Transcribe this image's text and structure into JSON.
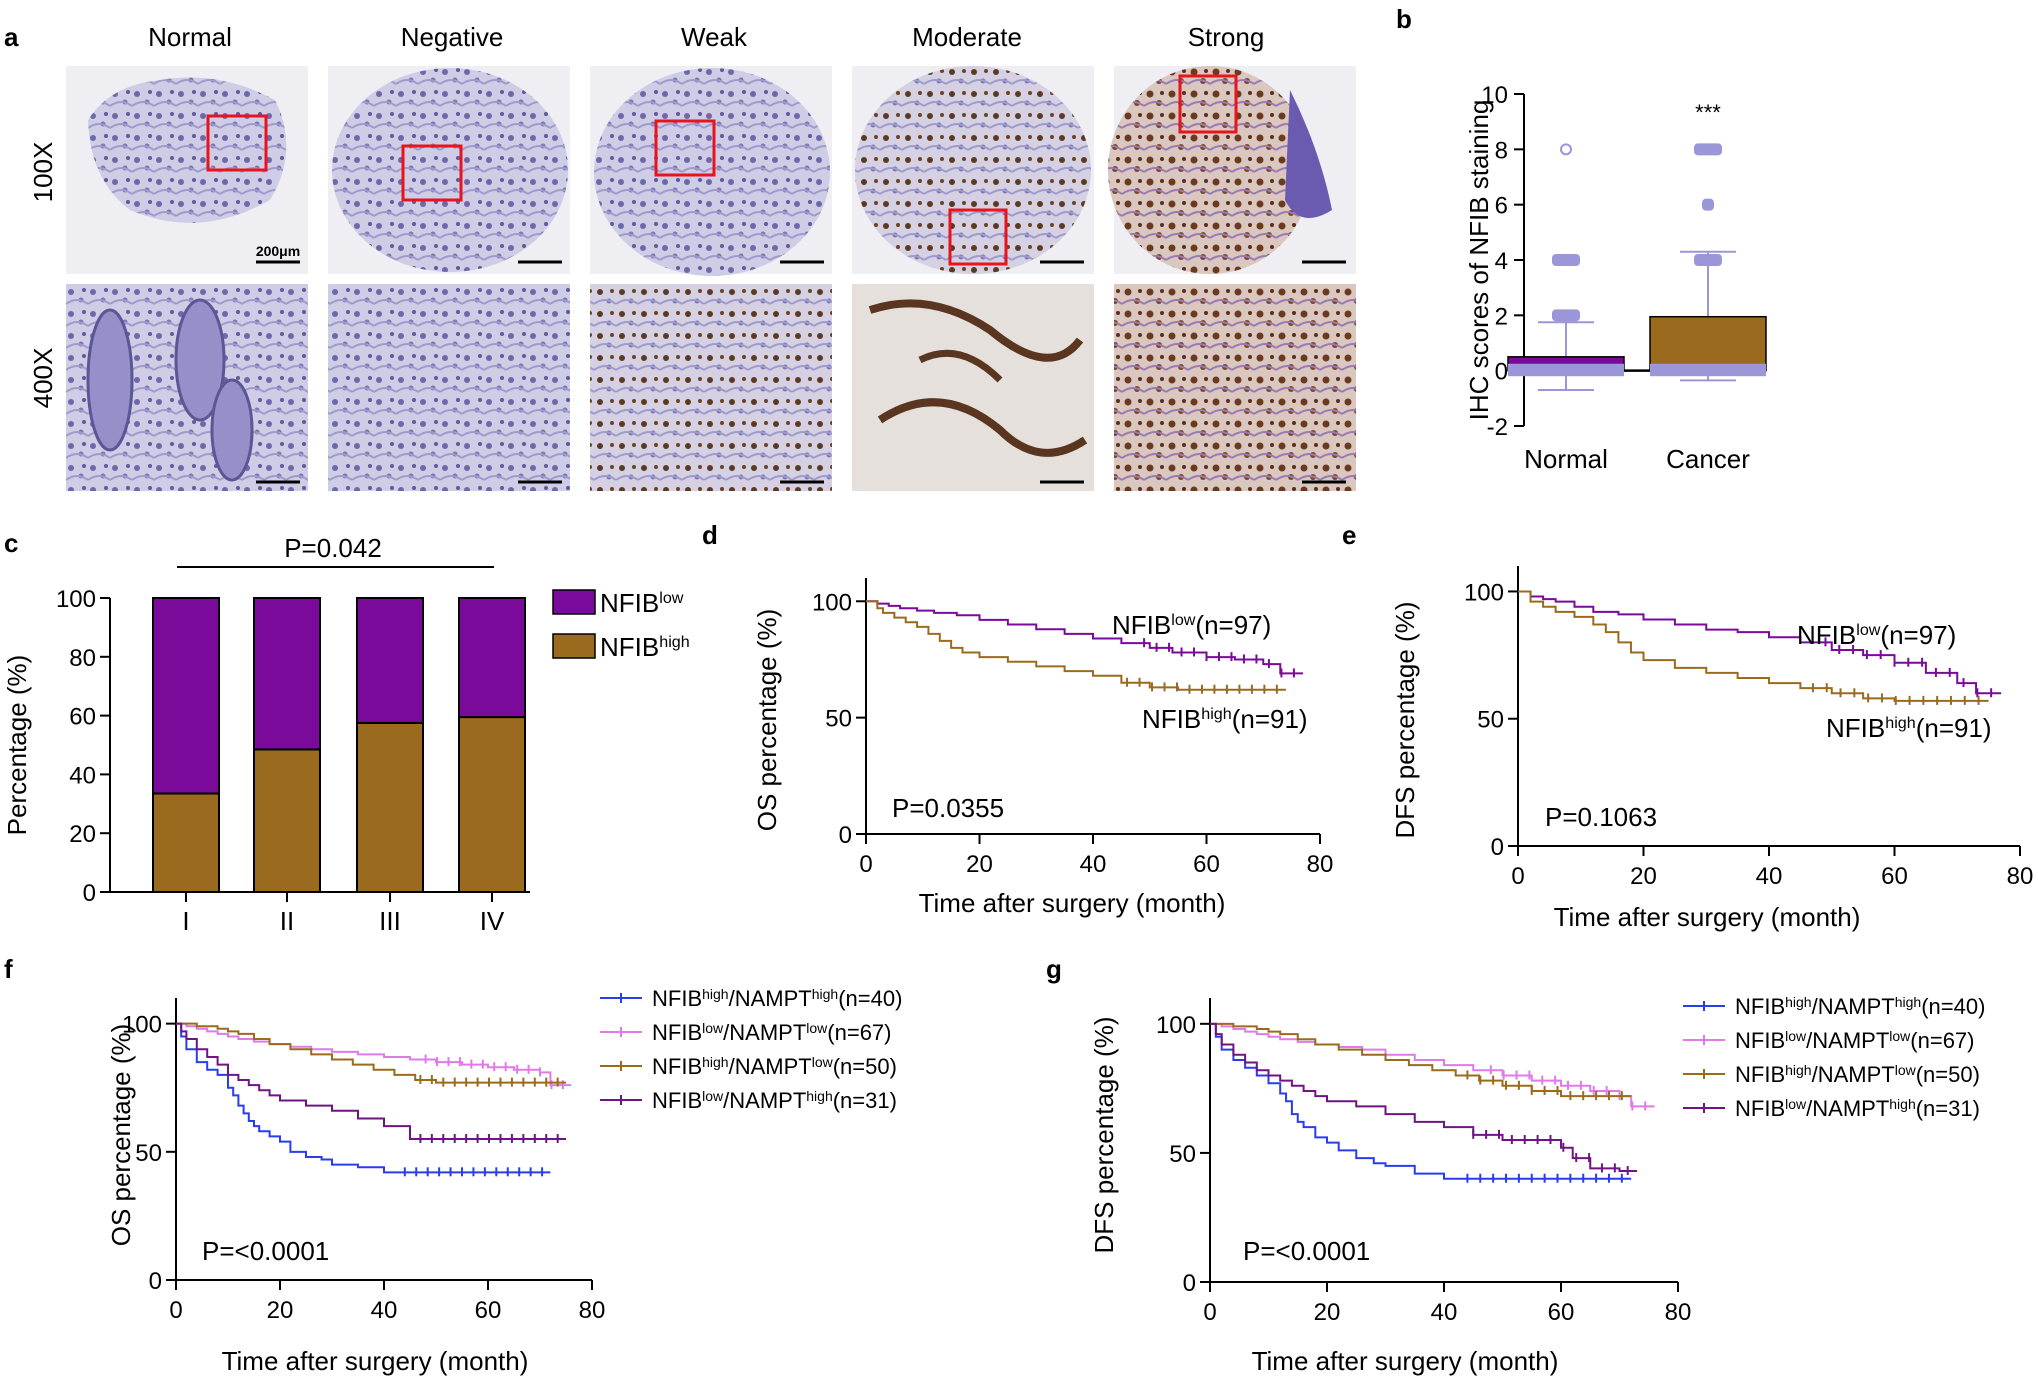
{
  "panel_labels": [
    "a",
    "b",
    "c",
    "d",
    "e",
    "f",
    "g"
  ],
  "colors": {
    "purple": "#7a0a9a",
    "brown": "#9a6b1f",
    "blue": "#2a3cf0",
    "pink": "#e07ae8",
    "tan": "#9b6a1c",
    "dark_purple": "#6e1582",
    "box_light": "#9a96d8",
    "stain_blue": "#8f8cc2",
    "stain_brown": "#7a4a2a",
    "red_box": "#e8131c"
  },
  "panel_a": {
    "columns": [
      "Normal",
      "Negative",
      "Weak",
      "Moderate",
      "Strong"
    ],
    "rows": [
      "100X",
      "400X"
    ],
    "scale_label": "200μm"
  },
  "chart_data": [
    {
      "id": "b",
      "type": "box",
      "title": "",
      "ylabel": "IHC scores of NFIB staining",
      "xlabel": "",
      "categories": [
        "Normal",
        "Cancer"
      ],
      "ylim": [
        -2,
        10
      ],
      "yticks": [
        "-2",
        "0",
        "2",
        "4",
        "6",
        "8",
        "10"
      ],
      "mean": [
        0.5,
        1.95
      ],
      "whisker_low": [
        -0.7,
        -0.35
      ],
      "whisker_high": [
        1.75,
        4.3
      ],
      "outliers": [
        [
          2,
          4,
          8
        ],
        [
          4,
          6,
          8
        ]
      ],
      "annotation": "***"
    },
    {
      "id": "c",
      "type": "bar",
      "stacked": true,
      "ylabel": "Percentage (%)",
      "categories": [
        "I",
        "II",
        "III",
        "IV"
      ],
      "ylim": [
        0,
        100
      ],
      "yticks": [
        "0",
        "20",
        "40",
        "60",
        "80",
        "100"
      ],
      "series": [
        {
          "name": "NFIB",
          "sup": "high",
          "color": "#9a6b1f",
          "values": [
            33.5,
            48.5,
            57.5,
            59.5
          ]
        },
        {
          "name": "NFIB",
          "sup": "low",
          "color": "#7a0a9a",
          "values": [
            66.5,
            51.5,
            42.5,
            40.5
          ]
        }
      ],
      "annotation": "P=0.042"
    },
    {
      "id": "d",
      "type": "line",
      "step": true,
      "ylabel": "OS percentage (%)",
      "xlabel": "Time after surgery (month)",
      "xlim": [
        0,
        80
      ],
      "ylim": [
        0,
        110
      ],
      "xticks": [
        "0",
        "20",
        "40",
        "60",
        "80"
      ],
      "yticks": [
        "0",
        "50",
        "100"
      ],
      "pvalue": "P=0.0355",
      "series": [
        {
          "name": "NFIB",
          "sup": "low",
          "n": "(n=97)",
          "color": "#7a0a9a",
          "x": [
            0,
            2,
            4,
            6,
            9,
            12,
            16,
            20,
            25,
            30,
            35,
            40,
            45,
            50,
            54,
            60,
            65,
            70,
            73,
            77
          ],
          "y": [
            100,
            99,
            98,
            97,
            96,
            95,
            94,
            92,
            90,
            88,
            86,
            84,
            82,
            80,
            78,
            76,
            75,
            73,
            69,
            69
          ]
        },
        {
          "name": "NFIB",
          "sup": "high",
          "n": "(n=91)",
          "color": "#9a6b1f",
          "x": [
            0,
            2,
            3,
            5,
            7,
            9,
            11,
            13,
            15,
            17,
            20,
            25,
            30,
            35,
            40,
            45,
            50,
            55,
            60,
            70,
            74
          ],
          "y": [
            100,
            97,
            95,
            93,
            91,
            89,
            86,
            83,
            80,
            78,
            76,
            74,
            72,
            70,
            68,
            65,
            63,
            62,
            62,
            62,
            62
          ]
        }
      ]
    },
    {
      "id": "e",
      "type": "line",
      "step": true,
      "ylabel": "DFS percentage (%)",
      "xlabel": "Time after surgery (month)",
      "xlim": [
        0,
        80
      ],
      "ylim": [
        0,
        110
      ],
      "xticks": [
        "0",
        "20",
        "40",
        "60",
        "80"
      ],
      "yticks": [
        "0",
        "50",
        "100"
      ],
      "pvalue": "P=0.1063",
      "series": [
        {
          "name": "NFIB",
          "sup": "low",
          "n": "(n=97)",
          "color": "#7a0a9a",
          "x": [
            0,
            2,
            4,
            6,
            9,
            12,
            16,
            20,
            25,
            30,
            35,
            40,
            45,
            50,
            55,
            60,
            65,
            70,
            73,
            77
          ],
          "y": [
            100,
            98,
            97,
            96,
            94,
            92,
            91,
            89,
            87,
            85,
            84,
            82,
            80,
            77,
            75,
            72,
            68,
            64,
            60,
            60
          ]
        },
        {
          "name": "NFIB",
          "sup": "high",
          "n": "(n=91)",
          "color": "#9a6b1f",
          "x": [
            0,
            2,
            4,
            6,
            9,
            12,
            14,
            16,
            18,
            20,
            25,
            30,
            35,
            40,
            45,
            50,
            55,
            60,
            70,
            75
          ],
          "y": [
            100,
            96,
            94,
            92,
            90,
            87,
            84,
            80,
            76,
            73,
            70,
            68,
            66,
            64,
            62,
            60,
            58,
            57,
            57,
            57
          ]
        }
      ]
    },
    {
      "id": "f",
      "type": "line",
      "step": true,
      "ylabel": "OS percentage (%)",
      "xlabel": "Time after surgery (month)",
      "xlim": [
        0,
        80
      ],
      "ylim": [
        0,
        110
      ],
      "xticks": [
        "0",
        "20",
        "40",
        "60",
        "80"
      ],
      "yticks": [
        "0",
        "50",
        "100"
      ],
      "pvalue": "P=<0.0001",
      "series": [
        {
          "name": "NFIB",
          "sup": "high",
          "name2": "/NAMPT",
          "sup2": "high",
          "n": "(n=40)",
          "color": "#2a3cf0",
          "x": [
            0,
            1,
            2,
            4,
            6,
            8,
            10,
            11,
            12,
            13,
            14,
            15,
            16,
            18,
            20,
            22,
            25,
            28,
            30,
            35,
            40,
            50,
            60,
            72
          ],
          "y": [
            100,
            95,
            90,
            85,
            82,
            80,
            75,
            72,
            68,
            65,
            62,
            60,
            58,
            56,
            54,
            50,
            48,
            47,
            45,
            44,
            42,
            42,
            42,
            42
          ]
        },
        {
          "name": "NFIB",
          "sup": "low",
          "name2": "/NAMPT",
          "sup2": "low",
          "n": "(n=67)",
          "color": "#e07ae8",
          "x": [
            0,
            2,
            4,
            6,
            8,
            10,
            12,
            15,
            18,
            22,
            26,
            30,
            35,
            40,
            45,
            50,
            55,
            60,
            65,
            70,
            72,
            76
          ],
          "y": [
            100,
            99,
            98,
            97,
            96,
            95,
            94,
            93,
            92,
            91,
            90,
            89,
            88,
            87,
            86,
            85,
            84,
            83,
            82,
            81,
            76,
            76
          ]
        },
        {
          "name": "NFIB",
          "sup": "high",
          "name2": "/NAMPT",
          "sup2": "low",
          "n": "(n=50)",
          "color": "#9b6a1c",
          "x": [
            0,
            4,
            8,
            10,
            12,
            15,
            18,
            22,
            26,
            30,
            34,
            38,
            42,
            46,
            50,
            60,
            70,
            75
          ],
          "y": [
            100,
            99,
            98,
            97,
            96,
            94,
            92,
            90,
            88,
            86,
            84,
            82,
            80,
            78,
            77,
            77,
            77,
            77
          ]
        },
        {
          "name": "NFIB",
          "sup": "low",
          "name2": "/NAMPT",
          "sup2": "high",
          "n": "(n=31)",
          "color": "#6e1582",
          "x": [
            0,
            1,
            2,
            4,
            6,
            8,
            10,
            12,
            14,
            16,
            18,
            20,
            25,
            30,
            35,
            40,
            45,
            50,
            60,
            70,
            75
          ],
          "y": [
            100,
            97,
            94,
            90,
            87,
            84,
            80,
            78,
            76,
            74,
            72,
            70,
            68,
            66,
            63,
            60,
            55,
            55,
            55,
            55,
            55
          ]
        }
      ]
    },
    {
      "id": "g",
      "type": "line",
      "step": true,
      "ylabel": "DFS percentage (%)",
      "xlabel": "Time after surgery (month)",
      "xlim": [
        0,
        80
      ],
      "ylim": [
        0,
        110
      ],
      "xticks": [
        "0",
        "20",
        "40",
        "60",
        "80"
      ],
      "yticks": [
        "0",
        "50",
        "100"
      ],
      "pvalue": "P=<0.0001",
      "series": [
        {
          "name": "NFIB",
          "sup": "high",
          "name2": "/NAMPT",
          "sup2": "high",
          "n": "(n=40)",
          "color": "#2a3cf0",
          "x": [
            0,
            1,
            2,
            4,
            6,
            8,
            10,
            12,
            13,
            14,
            15,
            16,
            18,
            20,
            22,
            25,
            28,
            30,
            35,
            40,
            50,
            60,
            72
          ],
          "y": [
            100,
            95,
            90,
            86,
            83,
            80,
            77,
            73,
            70,
            65,
            62,
            60,
            56,
            54,
            51,
            48,
            46,
            45,
            42,
            40,
            40,
            40,
            40
          ]
        },
        {
          "name": "NFIB",
          "sup": "low",
          "name2": "/NAMPT",
          "sup2": "low",
          "n": "(n=67)",
          "color": "#e07ae8",
          "x": [
            0,
            2,
            4,
            6,
            8,
            10,
            12,
            15,
            18,
            22,
            26,
            30,
            35,
            40,
            45,
            50,
            55,
            60,
            65,
            70,
            72,
            76
          ],
          "y": [
            100,
            99,
            98,
            97,
            96,
            95,
            94,
            93,
            92,
            91,
            90,
            88,
            86,
            84,
            82,
            80,
            78,
            76,
            74,
            72,
            68,
            68
          ]
        },
        {
          "name": "NFIB",
          "sup": "high",
          "name2": "/NAMPT",
          "sup2": "low",
          "n": "(n=50)",
          "color": "#9b6a1c",
          "x": [
            0,
            4,
            8,
            10,
            12,
            15,
            18,
            22,
            26,
            30,
            34,
            38,
            42,
            46,
            50,
            55,
            60,
            65,
            70,
            72
          ],
          "y": [
            100,
            99,
            98,
            97,
            96,
            94,
            92,
            90,
            88,
            86,
            84,
            82,
            80,
            78,
            76,
            74,
            72,
            72,
            72,
            72
          ]
        },
        {
          "name": "NFIB",
          "sup": "low",
          "name2": "/NAMPT",
          "sup2": "high",
          "n": "(n=31)",
          "color": "#6e1582",
          "x": [
            0,
            1,
            2,
            4,
            6,
            8,
            10,
            12,
            14,
            16,
            18,
            20,
            25,
            30,
            35,
            40,
            45,
            50,
            55,
            60,
            62,
            65,
            70,
            73
          ],
          "y": [
            100,
            96,
            92,
            88,
            85,
            82,
            80,
            78,
            76,
            74,
            72,
            70,
            68,
            65,
            62,
            60,
            57,
            55,
            55,
            52,
            48,
            44,
            43,
            43
          ]
        }
      ]
    }
  ]
}
